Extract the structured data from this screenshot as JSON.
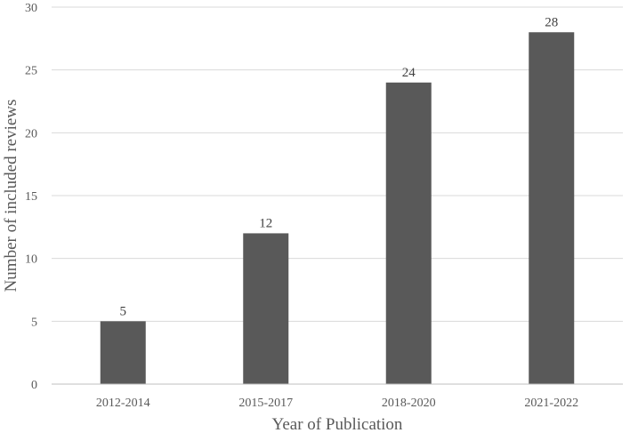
{
  "chart_data": {
    "type": "bar",
    "categories": [
      "2012-2014",
      "2015-2017",
      "2018-2020",
      "2021-2022"
    ],
    "values": [
      5,
      12,
      24,
      28
    ],
    "data_labels": [
      "5",
      "12",
      "24",
      "28"
    ],
    "yticks": [
      "0",
      "5",
      "10",
      "15",
      "20",
      "25",
      "30"
    ],
    "ylim": [
      0,
      30
    ],
    "xlabel": "Year of Publication",
    "ylabel": "Number of included reviews",
    "grid": true,
    "bar_color": "#595959"
  }
}
